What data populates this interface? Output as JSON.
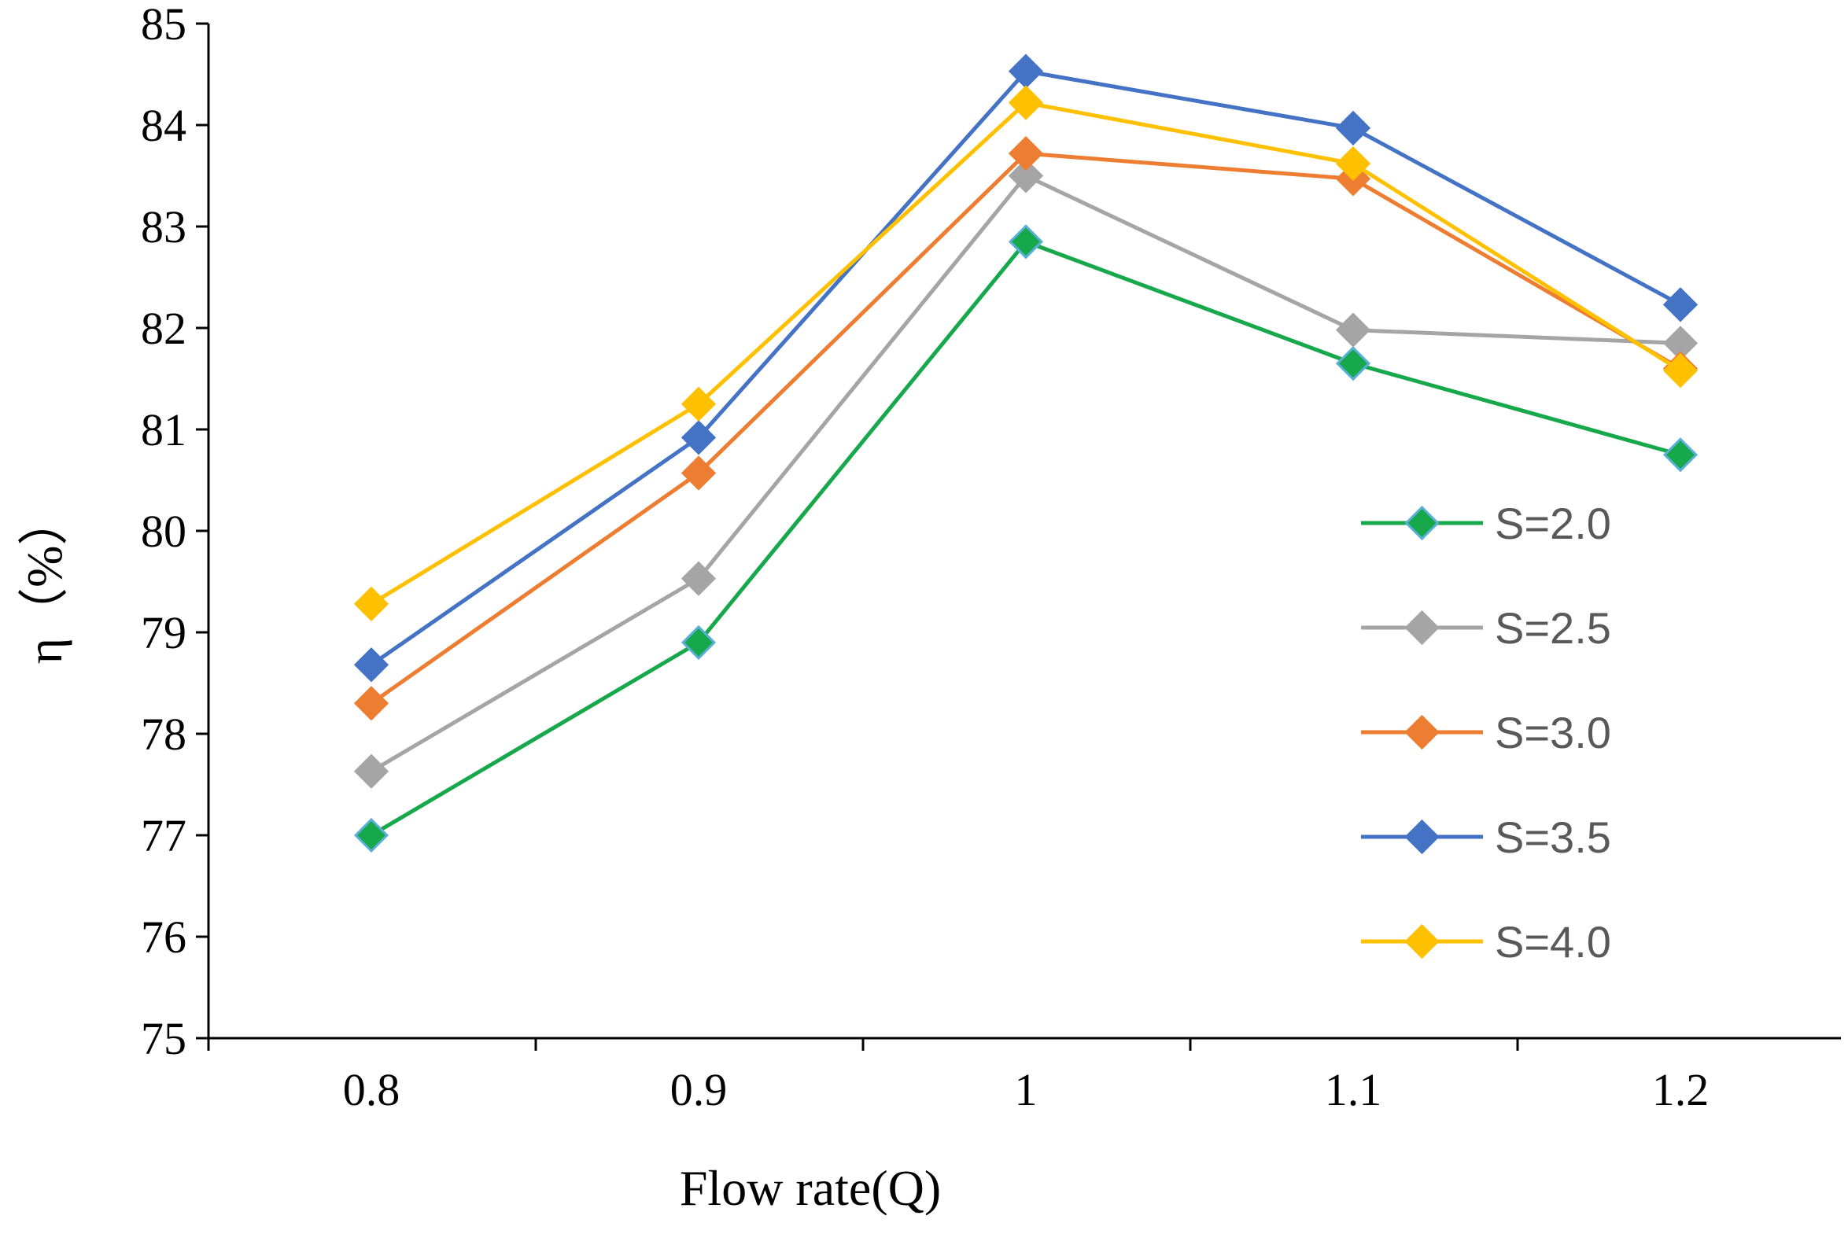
{
  "chart_data": {
    "type": "line",
    "title": "",
    "xlabel": "Flow rate(Q)",
    "ylabel": "η（%）",
    "categories": [
      "0.8",
      "0.9",
      "1",
      "1.1",
      "1.2"
    ],
    "y_ticks": [
      "75",
      "76",
      "77",
      "78",
      "79",
      "80",
      "81",
      "82",
      "83",
      "84",
      "85"
    ],
    "ylim": [
      75,
      85
    ],
    "grid": false,
    "legend_position": "right",
    "marker": "diamond",
    "series": [
      {
        "name": "S=2.0",
        "color": "#18A84C",
        "marker_color": "#5BB0D8",
        "values": [
          77.0,
          78.9,
          82.85,
          81.65,
          80.75
        ]
      },
      {
        "name": "S=2.5",
        "color": "#A5A5A5",
        "marker_color": "#A5A5A5",
        "values": [
          77.63,
          79.53,
          83.5,
          81.98,
          81.85
        ]
      },
      {
        "name": "S=3.0",
        "color": "#ED7D31",
        "marker_color": "#ED7D31",
        "values": [
          78.3,
          80.57,
          83.72,
          83.47,
          81.6
        ]
      },
      {
        "name": "S=3.5",
        "color": "#4472C4",
        "marker_color": "#4472C4",
        "values": [
          78.68,
          80.92,
          84.53,
          83.97,
          82.23
        ]
      },
      {
        "name": "S=4.0",
        "color": "#FFC000",
        "marker_color": "#FFC000",
        "values": [
          79.28,
          81.25,
          84.22,
          83.62,
          81.58
        ]
      }
    ]
  }
}
